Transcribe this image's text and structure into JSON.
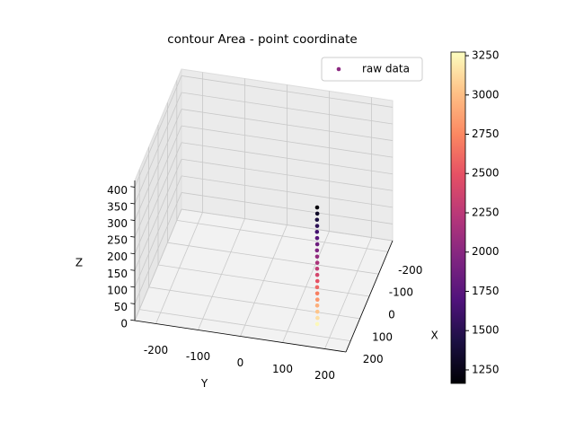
{
  "chart_data": {
    "type": "scatter3d",
    "title": "contour Area - point coordinate",
    "xlabel": "X",
    "ylabel": "Y",
    "zlabel": "Z",
    "xlim": [
      -250,
      250
    ],
    "ylim": [
      -250,
      250
    ],
    "zlim": [
      0,
      420
    ],
    "xticks": [
      -200,
      -100,
      0,
      100,
      200
    ],
    "yticks": [
      -200,
      -100,
      0,
      100,
      200
    ],
    "zticks": [
      0,
      50,
      100,
      150,
      200,
      250,
      300,
      350,
      400
    ],
    "clim": [
      1164,
      3273
    ],
    "cticks": [
      1250,
      1500,
      1750,
      2000,
      2250,
      2500,
      2750,
      3000,
      3250
    ],
    "colormap": "magma",
    "grid": true,
    "legend": "upper right",
    "series": [
      {
        "name": "raw data",
        "color": "#8c2981",
        "x": [
          -75,
          -63,
          -51,
          -39,
          -28,
          -16,
          -4,
          8,
          20,
          32,
          43,
          55,
          67,
          79,
          91,
          103,
          114,
          126,
          138,
          150
        ],
        "y": [
          110,
          113,
          115,
          118,
          120,
          123,
          126,
          128,
          131,
          134,
          136,
          139,
          142,
          144,
          147,
          150,
          152,
          155,
          158,
          160
        ],
        "z": [
          190,
          180,
          170,
          160,
          150,
          140,
          130,
          120,
          110,
          100,
          90,
          80,
          70,
          60,
          50,
          40,
          30,
          20,
          10,
          0
        ],
        "c": [
          1200,
          1310,
          1420,
          1520,
          1630,
          1740,
          1850,
          1960,
          2060,
          2170,
          2280,
          2390,
          2490,
          2600,
          2710,
          2820,
          2930,
          3030,
          3140,
          3250
        ]
      }
    ]
  }
}
